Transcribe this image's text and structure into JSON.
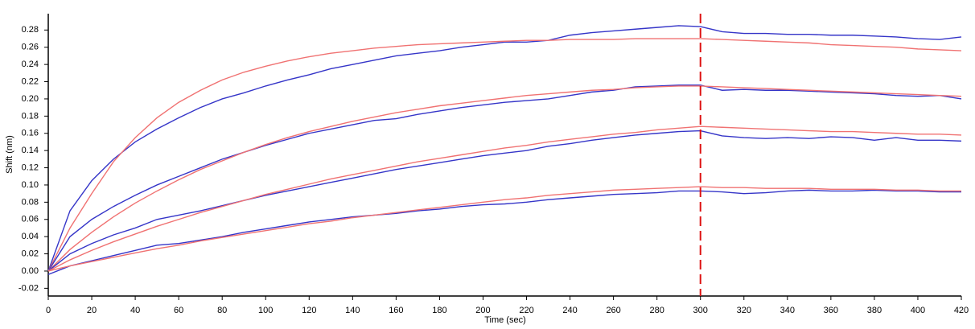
{
  "chart_data": {
    "type": "line",
    "y_label": "Shift (nm)",
    "x_label": "Time (sec)",
    "x": [
      0,
      10,
      20,
      30,
      40,
      50,
      60,
      70,
      80,
      90,
      100,
      110,
      120,
      130,
      140,
      150,
      160,
      170,
      180,
      190,
      200,
      210,
      220,
      230,
      240,
      250,
      260,
      270,
      280,
      290,
      300,
      310,
      320,
      330,
      340,
      350,
      360,
      370,
      380,
      390,
      400,
      410,
      420
    ],
    "series": [
      {
        "color": "#3535c8",
        "values": [
          0,
          0.07,
          0.105,
          0.13,
          0.15,
          0.165,
          0.178,
          0.19,
          0.2,
          0.207,
          0.215,
          0.222,
          0.228,
          0.235,
          0.24,
          0.245,
          0.25,
          0.253,
          0.256,
          0.26,
          0.263,
          0.266,
          0.266,
          0.268,
          0.274,
          0.277,
          0.279,
          0.281,
          0.283,
          0.285,
          0.284,
          0.278,
          0.276,
          0.276,
          0.275,
          0.275,
          0.274,
          0.274,
          0.273,
          0.272,
          0.27,
          0.269,
          0.272
        ]
      },
      {
        "color": "#f07272",
        "values": [
          0,
          0.05,
          0.09,
          0.127,
          0.155,
          0.178,
          0.196,
          0.21,
          0.222,
          0.231,
          0.238,
          0.244,
          0.249,
          0.253,
          0.256,
          0.259,
          0.261,
          0.263,
          0.264,
          0.265,
          0.266,
          0.267,
          0.268,
          0.268,
          0.269,
          0.269,
          0.269,
          0.27,
          0.27,
          0.27,
          0.27,
          0.269,
          0.268,
          0.267,
          0.266,
          0.265,
          0.263,
          0.262,
          0.261,
          0.26,
          0.258,
          0.257,
          0.256
        ]
      },
      {
        "color": "#3535c8",
        "values": [
          0,
          0.04,
          0.06,
          0.075,
          0.088,
          0.1,
          0.11,
          0.12,
          0.13,
          0.138,
          0.146,
          0.153,
          0.16,
          0.165,
          0.17,
          0.175,
          0.177,
          0.182,
          0.186,
          0.19,
          0.193,
          0.196,
          0.198,
          0.2,
          0.204,
          0.208,
          0.21,
          0.214,
          0.215,
          0.216,
          0.216,
          0.21,
          0.211,
          0.21,
          0.21,
          0.209,
          0.208,
          0.207,
          0.206,
          0.204,
          0.203,
          0.204,
          0.2
        ]
      },
      {
        "color": "#f07272",
        "values": [
          0,
          0.025,
          0.045,
          0.063,
          0.079,
          0.093,
          0.106,
          0.118,
          0.128,
          0.138,
          0.147,
          0.155,
          0.162,
          0.168,
          0.174,
          0.179,
          0.184,
          0.188,
          0.192,
          0.195,
          0.198,
          0.201,
          0.204,
          0.206,
          0.208,
          0.21,
          0.211,
          0.213,
          0.214,
          0.215,
          0.215,
          0.214,
          0.213,
          0.212,
          0.211,
          0.21,
          0.209,
          0.208,
          0.207,
          0.206,
          0.205,
          0.204,
          0.203
        ]
      },
      {
        "color": "#3535c8",
        "values": [
          0,
          0.02,
          0.032,
          0.042,
          0.05,
          0.06,
          0.065,
          0.07,
          0.076,
          0.082,
          0.088,
          0.093,
          0.098,
          0.103,
          0.108,
          0.113,
          0.118,
          0.122,
          0.126,
          0.13,
          0.134,
          0.137,
          0.14,
          0.145,
          0.148,
          0.152,
          0.155,
          0.158,
          0.16,
          0.162,
          0.163,
          0.157,
          0.155,
          0.154,
          0.155,
          0.154,
          0.156,
          0.155,
          0.152,
          0.155,
          0.152,
          0.152,
          0.151
        ]
      },
      {
        "color": "#f07272",
        "values": [
          0,
          0.013,
          0.024,
          0.034,
          0.043,
          0.052,
          0.06,
          0.068,
          0.075,
          0.082,
          0.089,
          0.095,
          0.101,
          0.107,
          0.112,
          0.117,
          0.122,
          0.127,
          0.131,
          0.135,
          0.139,
          0.143,
          0.146,
          0.15,
          0.153,
          0.156,
          0.159,
          0.161,
          0.164,
          0.166,
          0.168,
          0.167,
          0.166,
          0.165,
          0.164,
          0.163,
          0.162,
          0.162,
          0.161,
          0.16,
          0.159,
          0.159,
          0.158
        ]
      },
      {
        "color": "#3535c8",
        "values": [
          -0.004,
          0.006,
          0.012,
          0.018,
          0.024,
          0.03,
          0.032,
          0.036,
          0.04,
          0.045,
          0.049,
          0.053,
          0.057,
          0.06,
          0.063,
          0.065,
          0.067,
          0.07,
          0.072,
          0.075,
          0.077,
          0.078,
          0.08,
          0.083,
          0.085,
          0.087,
          0.089,
          0.09,
          0.091,
          0.093,
          0.093,
          0.092,
          0.09,
          0.091,
          0.093,
          0.094,
          0.093,
          0.093,
          0.094,
          0.093,
          0.093,
          0.092,
          0.092
        ]
      },
      {
        "color": "#f07272",
        "values": [
          0,
          0.006,
          0.011,
          0.016,
          0.021,
          0.026,
          0.03,
          0.035,
          0.039,
          0.043,
          0.047,
          0.051,
          0.055,
          0.058,
          0.062,
          0.065,
          0.068,
          0.071,
          0.074,
          0.077,
          0.08,
          0.083,
          0.085,
          0.088,
          0.09,
          0.092,
          0.094,
          0.095,
          0.096,
          0.097,
          0.098,
          0.097,
          0.097,
          0.096,
          0.096,
          0.096,
          0.095,
          0.095,
          0.095,
          0.094,
          0.094,
          0.093,
          0.093
        ]
      }
    ],
    "xlim": [
      0,
      420
    ],
    "xticks": [
      0,
      20,
      40,
      60,
      80,
      100,
      120,
      140,
      160,
      180,
      200,
      220,
      240,
      260,
      280,
      300,
      320,
      340,
      360,
      380,
      400,
      420
    ],
    "ylim": [
      -0.029,
      0.299
    ],
    "yticks": [
      -0.02,
      {
        "value": 0,
        "label": "0.00"
      },
      0.02,
      0.04,
      0.06,
      0.08,
      {
        "value": 0.1,
        "label": "0.10"
      },
      0.12,
      0.14,
      0.16,
      0.18,
      {
        "value": 0.2,
        "label": "0.20"
      },
      0.22,
      0.24,
      0.26,
      0.28
    ],
    "vline": {
      "x": 300,
      "color": "#dd1111"
    }
  }
}
